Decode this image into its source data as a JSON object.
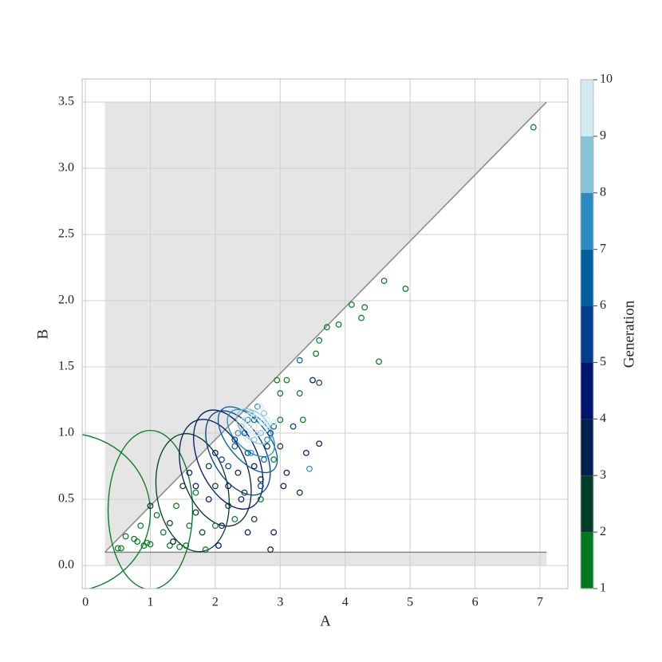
{
  "chart_data": {
    "type": "scatter",
    "x_label": "A",
    "y_label": "B",
    "colorbar_label": "Generation",
    "xlim": [
      -0.05,
      7.43
    ],
    "ylim": [
      -0.175,
      3.675
    ],
    "xticks": [
      0,
      1,
      2,
      3,
      4,
      5,
      6,
      7
    ],
    "yticks": [
      {
        "value": 0,
        "label": "0.0"
      },
      0.5,
      {
        "value": 1,
        "label": "1.0"
      },
      1.5,
      {
        "value": 2,
        "label": "2.0"
      },
      2.5,
      {
        "value": 3,
        "label": "3.0"
      },
      3.5
    ],
    "grid": true,
    "colorbar": {
      "lim": [
        1,
        10
      ],
      "ticks": [
        1,
        2,
        3,
        4,
        5,
        6,
        7,
        8,
        9,
        10
      ],
      "colors": [
        "#007a1e",
        "#003d2b",
        "#001f4d",
        "#00146e",
        "#003d8c",
        "#005f9e",
        "#2a8cc0",
        "#86c2d8",
        "#d3e9f1"
      ]
    },
    "shaded_region": [
      [
        0.3,
        0.1
      ],
      [
        7.1,
        3.5
      ],
      [
        0.3,
        3.5
      ],
      [
        0.3,
        0
      ],
      [
        7.1,
        0
      ],
      [
        7.1,
        0.1
      ]
    ],
    "ellipses": [
      {
        "cx": -0.3,
        "cy": 0.4,
        "rx": 1.3,
        "ry": 0.6,
        "angle": 0,
        "c": 1
      },
      {
        "cx": 1.0,
        "cy": 0.42,
        "rx": 0.65,
        "ry": 0.6,
        "angle": 0,
        "c": 1
      },
      {
        "cx": 1.65,
        "cy": 0.55,
        "rx": 0.55,
        "ry": 0.45,
        "angle": -10,
        "c": 2
      },
      {
        "cx": 2.0,
        "cy": 0.7,
        "rx": 0.5,
        "ry": 0.42,
        "angle": -20,
        "c": 3
      },
      {
        "cx": 2.2,
        "cy": 0.8,
        "rx": 0.45,
        "ry": 0.4,
        "angle": -25,
        "c": 4
      },
      {
        "cx": 2.35,
        "cy": 0.85,
        "rx": 0.4,
        "ry": 0.35,
        "angle": -30,
        "c": 5
      },
      {
        "cx": 2.5,
        "cy": 0.95,
        "rx": 0.3,
        "ry": 0.3,
        "angle": -40,
        "c": 6
      },
      {
        "cx": 2.55,
        "cy": 1.0,
        "rx": 0.25,
        "ry": 0.22,
        "angle": -45,
        "c": 7
      },
      {
        "cx": 2.6,
        "cy": 1.05,
        "rx": 0.2,
        "ry": 0.16,
        "angle": -45,
        "c": 8
      },
      {
        "cx": 2.62,
        "cy": 1.07,
        "rx": 0.15,
        "ry": 0.1,
        "angle": -45,
        "c": 9
      }
    ],
    "x": [
      0.5,
      0.55,
      0.62,
      0.75,
      0.8,
      0.9,
      0.95,
      1.0,
      0.85,
      1.1,
      1.2,
      1.3,
      1.45,
      1.55,
      1.4,
      1.6,
      1.7,
      1.85,
      2.0,
      2.3,
      2.7,
      2.9,
      3.0,
      3.1,
      3.3,
      3.6,
      3.72,
      3.9,
      4.1,
      4.25,
      4.3,
      4.52,
      4.6,
      4.93,
      6.9,
      3.55,
      3.35,
      2.95,
      1.0,
      1.3,
      1.5,
      1.7,
      1.8,
      2.0,
      2.2,
      2.45,
      2.6,
      2.8,
      3.0,
      1.9,
      1.35,
      1.6,
      1.9,
      2.1,
      2.35,
      2.5,
      2.85,
      3.3,
      3.1,
      2.7,
      1.7,
      2.0,
      2.2,
      2.4,
      2.6,
      2.9,
      3.05,
      3.4,
      3.6,
      2.05,
      3.5,
      2.1,
      2.3,
      2.5,
      2.7,
      2.85,
      3.2,
      3.6,
      2.2,
      2.3,
      2.45,
      2.6,
      2.75,
      2.9,
      3.3,
      3.0,
      2.35,
      2.5,
      2.65,
      2.8,
      2.55,
      3.45,
      2.4,
      2.55,
      2.7,
      2.6,
      2.75,
      2.45,
      2.6,
      2.7,
      2.5,
      2.8,
      2.9,
      2.5,
      2.6,
      2.65,
      2.72,
      2.55
    ],
    "y": [
      0.13,
      0.13,
      0.22,
      0.2,
      0.18,
      0.15,
      0.17,
      0.16,
      0.3,
      0.38,
      0.25,
      0.15,
      0.14,
      0.15,
      0.45,
      0.3,
      0.55,
      0.12,
      0.3,
      0.35,
      0.5,
      0.8,
      1.1,
      1.4,
      1.3,
      1.7,
      1.8,
      1.82,
      1.97,
      1.87,
      1.95,
      1.54,
      2.15,
      2.09,
      3.31,
      1.6,
      1.1,
      1.4,
      0.45,
      0.32,
      0.6,
      0.4,
      0.25,
      0.6,
      0.45,
      0.55,
      0.35,
      0.9,
      0.9,
      0.75,
      0.18,
      0.7,
      0.5,
      0.3,
      0.7,
      0.25,
      0.12,
      0.55,
      0.7,
      0.65,
      0.6,
      0.85,
      0.6,
      0.5,
      0.75,
      0.25,
      0.6,
      0.85,
      0.92,
      0.15,
      1.4,
      0.8,
      0.95,
      0.85,
      0.6,
      1.0,
      1.05,
      1.38,
      0.75,
      0.9,
      1.0,
      1.1,
      0.8,
      1.05,
      1.55,
      1.3,
      1.0,
      1.1,
      1.2,
      0.95,
      0.85,
      0.73,
      1.05,
      1.15,
      1.0,
      0.95,
      1.15,
      1.1,
      1.05,
      1.2,
      0.95,
      1.1,
      1.08,
      1.05,
      1.12,
      1.0,
      1.08,
      1.0
    ],
    "c": [
      1,
      1,
      1,
      1,
      1,
      1,
      1,
      1,
      1,
      1,
      1,
      1,
      1,
      1,
      1,
      1,
      1,
      1,
      1,
      1,
      1,
      1,
      1,
      1,
      1,
      1,
      1,
      1,
      1,
      1,
      1,
      1,
      1,
      1,
      1,
      1,
      1,
      1,
      2,
      2,
      2,
      2,
      2,
      2,
      2,
      2,
      2,
      2,
      2,
      2,
      3,
      3,
      3,
      3,
      3,
      3,
      3,
      3,
      3,
      3,
      4,
      4,
      4,
      4,
      4,
      4,
      4,
      4,
      4,
      4,
      4,
      5,
      5,
      5,
      5,
      5,
      5,
      5,
      5,
      6,
      6,
      6,
      6,
      6,
      6,
      6,
      7,
      7,
      7,
      7,
      7,
      7,
      8,
      8,
      8,
      8,
      8,
      9,
      9,
      9,
      9,
      9,
      9,
      10,
      10,
      10,
      10,
      10
    ]
  }
}
